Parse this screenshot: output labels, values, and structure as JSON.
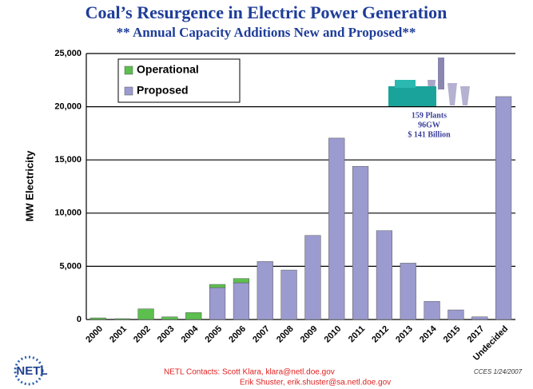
{
  "chart_data": {
    "type": "bar",
    "stacked": true,
    "title": "Coal’s Resurgence in Electric Power Generation",
    "subtitle": "** Annual Capacity Additions New and Proposed**",
    "y_label": "MW Electricity",
    "categories": [
      "2000",
      "2001",
      "2002",
      "2003",
      "2004",
      "2005",
      "2006",
      "2007",
      "2008",
      "2009",
      "2010",
      "2011",
      "2012",
      "2013",
      "2014",
      "2015",
      "2017",
      "Undecided"
    ],
    "series": [
      {
        "name": "Operational",
        "color": "#5cbf4e",
        "values": [
          150,
          80,
          1000,
          250,
          650,
          300,
          400,
          0,
          0,
          0,
          0,
          0,
          0,
          0,
          0,
          0,
          0,
          0
        ]
      },
      {
        "name": "Proposed",
        "color": "#9b9bd0",
        "values": [
          0,
          0,
          0,
          0,
          0,
          3000,
          3450,
          5450,
          4650,
          7900,
          17050,
          14400,
          8350,
          5300,
          1700,
          900,
          250,
          20950
        ]
      }
    ],
    "ylim": [
      0,
      25000
    ],
    "yticks": [
      0,
      {
        "value": 5000,
        "label": "5,000"
      },
      {
        "value": 10000,
        "label": "10,000"
      },
      {
        "value": 15000,
        "label": "15,000"
      },
      {
        "value": 20000,
        "label": "20,000"
      },
      {
        "value": 25000,
        "label": "25,000"
      }
    ],
    "grid": true,
    "legend_position": "upper left",
    "annotation": [
      "159 Plants",
      "96GW",
      "$ 141 Billion"
    ],
    "logo": "NETL",
    "footer": {
      "contacts": [
        "NETL Contacts: Scott Klara, klara@netl.doe.gov",
        "Erik Shuster, erik.shuster@sa.netl.doe.gov"
      ],
      "note": "CCES 1/24/2007"
    }
  }
}
